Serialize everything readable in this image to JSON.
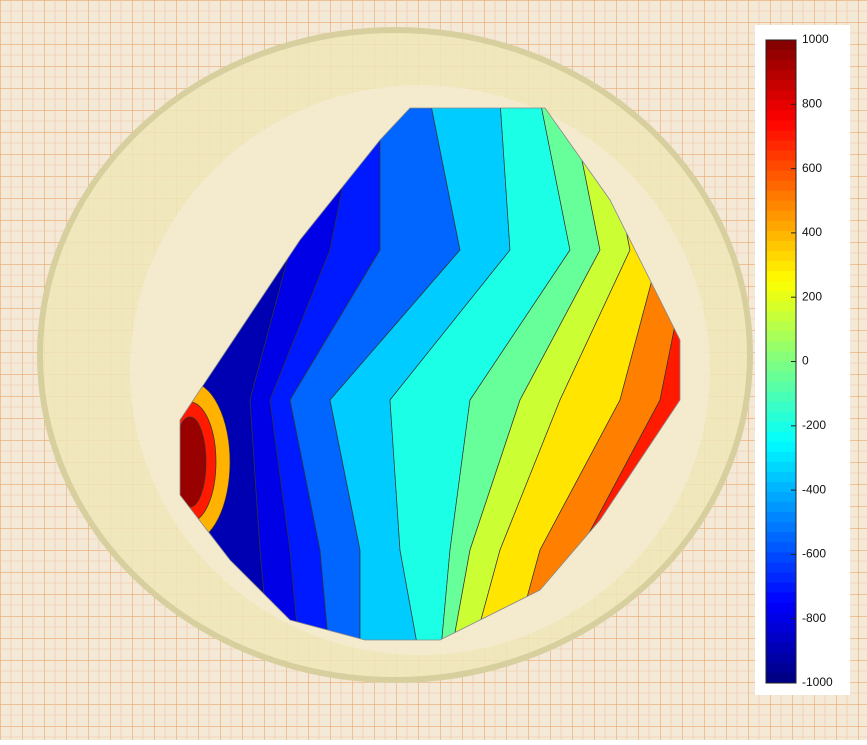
{
  "chart_data": {
    "type": "contour",
    "colormap": "jet",
    "levels": [
      -900,
      -800,
      -700,
      -550,
      -350,
      -200,
      -50,
      150,
      300,
      500,
      700
    ],
    "peak_levels": [
      400,
      700,
      950
    ],
    "clim": [
      -1000,
      1000
    ],
    "cticks": [
      -1000,
      -800,
      -600,
      -400,
      -200,
      0,
      200,
      400,
      600,
      800,
      1000
    ]
  }
}
